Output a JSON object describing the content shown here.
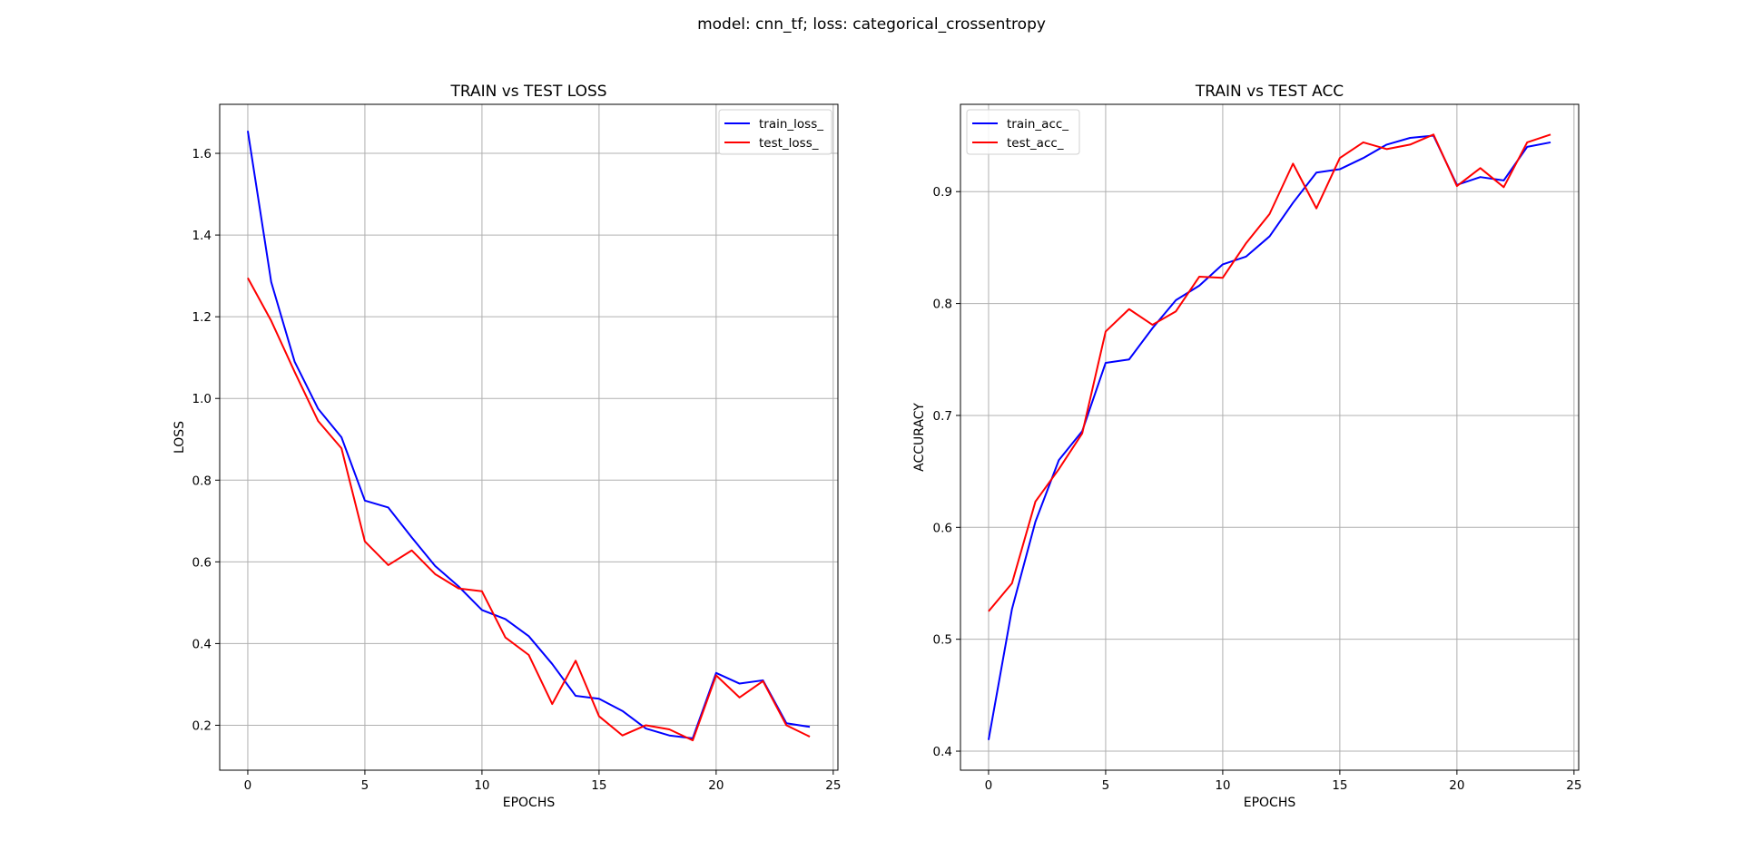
{
  "figure": {
    "suptitle": "model: cnn_tf; loss: categorical_crossentropy"
  },
  "chart_data": [
    {
      "type": "line",
      "title": "TRAIN vs TEST LOSS",
      "xlabel": "EPOCHS",
      "ylabel": "LOSS",
      "xlim": [
        -1.2,
        25.2
      ],
      "ylim": [
        0.09,
        1.72
      ],
      "xticks": [
        0,
        5,
        10,
        15,
        20,
        25
      ],
      "yticks": [
        0.2,
        0.4,
        0.6,
        0.8,
        1.0,
        1.2,
        1.4,
        1.6
      ],
      "ytick_labels": [
        "0.2",
        "0.4",
        "0.6",
        "0.8",
        "1.0",
        "1.2",
        "1.4",
        "1.6"
      ],
      "grid": true,
      "legend_position": "top-right",
      "x": [
        0,
        1,
        2,
        3,
        4,
        5,
        6,
        7,
        8,
        9,
        10,
        11,
        12,
        13,
        14,
        15,
        16,
        17,
        18,
        19,
        20,
        21,
        22,
        23,
        24
      ],
      "series": [
        {
          "name": "train_loss_",
          "color": "#0000ff",
          "values": [
            1.655,
            1.285,
            1.09,
            0.975,
            0.905,
            0.75,
            0.733,
            0.66,
            0.59,
            0.54,
            0.482,
            0.46,
            0.418,
            0.35,
            0.272,
            0.265,
            0.235,
            0.192,
            0.175,
            0.168,
            0.328,
            0.302,
            0.31,
            0.205,
            0.196
          ]
        },
        {
          "name": "test_loss_",
          "color": "#ff0000",
          "values": [
            1.295,
            1.19,
            1.065,
            0.945,
            0.878,
            0.65,
            0.592,
            0.628,
            0.57,
            0.535,
            0.528,
            0.415,
            0.372,
            0.252,
            0.358,
            0.222,
            0.175,
            0.2,
            0.19,
            0.163,
            0.322,
            0.268,
            0.308,
            0.2,
            0.172
          ]
        }
      ]
    },
    {
      "type": "line",
      "title": "TRAIN vs TEST ACC",
      "xlabel": "EPOCHS",
      "ylabel": "ACCURACY",
      "xlim": [
        -1.2,
        25.2
      ],
      "ylim": [
        0.383,
        0.978
      ],
      "xticks": [
        0,
        5,
        10,
        15,
        20,
        25
      ],
      "yticks": [
        0.4,
        0.5,
        0.6,
        0.7,
        0.8,
        0.9
      ],
      "ytick_labels": [
        "0.4",
        "0.5",
        "0.6",
        "0.7",
        "0.8",
        "0.9"
      ],
      "grid": true,
      "legend_position": "top-left",
      "x": [
        0,
        1,
        2,
        3,
        4,
        5,
        6,
        7,
        8,
        9,
        10,
        11,
        12,
        13,
        14,
        15,
        16,
        17,
        18,
        19,
        20,
        21,
        22,
        23,
        24
      ],
      "series": [
        {
          "name": "train_acc_",
          "color": "#0000ff",
          "values": [
            0.41,
            0.527,
            0.605,
            0.66,
            0.686,
            0.747,
            0.75,
            0.778,
            0.803,
            0.816,
            0.835,
            0.842,
            0.86,
            0.89,
            0.917,
            0.92,
            0.93,
            0.942,
            0.948,
            0.95,
            0.906,
            0.913,
            0.91,
            0.94,
            0.944
          ]
        },
        {
          "name": "test_acc_",
          "color": "#ff0000",
          "values": [
            0.525,
            0.55,
            0.623,
            0.652,
            0.684,
            0.775,
            0.795,
            0.781,
            0.793,
            0.824,
            0.823,
            0.854,
            0.88,
            0.925,
            0.885,
            0.93,
            0.944,
            0.938,
            0.942,
            0.951,
            0.905,
            0.921,
            0.904,
            0.944,
            0.951
          ]
        }
      ]
    }
  ]
}
